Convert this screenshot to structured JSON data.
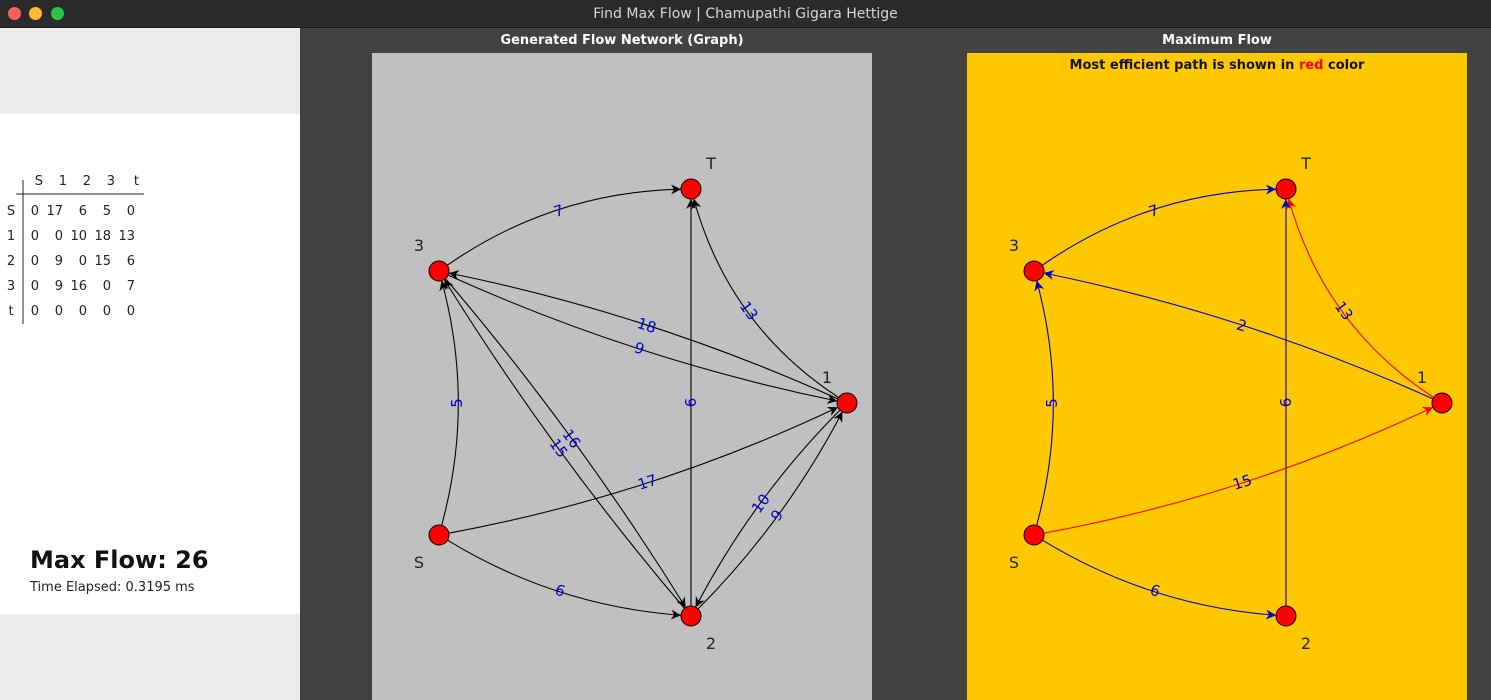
{
  "window": {
    "title": "Find Max Flow | Chamupathi Gigara Hettige",
    "buttons": {
      "close": "#ff5f57",
      "minimize": "#febc2e",
      "zoom": "#28c840"
    }
  },
  "matrix": {
    "col_headers": [
      "S",
      "1",
      "2",
      "3",
      "t"
    ],
    "rows": [
      {
        "label": "S",
        "values": [
          "0",
          "17",
          "6",
          "5",
          "0"
        ]
      },
      {
        "label": "1",
        "values": [
          "0",
          "0",
          "10",
          "18",
          "13"
        ]
      },
      {
        "label": "2",
        "values": [
          "0",
          "9",
          "0",
          "15",
          "6"
        ]
      },
      {
        "label": "3",
        "values": [
          "0",
          "9",
          "16",
          "0",
          "7"
        ]
      },
      {
        "label": "t",
        "values": [
          "0",
          "0",
          "0",
          "0",
          "0"
        ]
      }
    ]
  },
  "result": {
    "max_flow_label": "Max Flow: 26",
    "time_elapsed_label": "Time Elapsed: 0.3195 ms"
  },
  "graph_panel": {
    "title": "Generated Flow Network (Graph)",
    "background": "#c0c0c0",
    "nodes": [
      {
        "id": "S",
        "label": "S"
      },
      {
        "id": "1",
        "label": "1"
      },
      {
        "id": "2",
        "label": "2"
      },
      {
        "id": "3",
        "label": "3"
      },
      {
        "id": "T",
        "label": "T"
      }
    ],
    "edges": [
      {
        "from": "3",
        "to": "T",
        "label": "7"
      },
      {
        "from": "1",
        "to": "T",
        "label": "13"
      },
      {
        "from": "1",
        "to": "3",
        "label": "18"
      },
      {
        "from": "2",
        "to": "T",
        "label": "6"
      },
      {
        "from": "3",
        "to": "1",
        "label": "9"
      },
      {
        "from": "S",
        "to": "3",
        "label": "5"
      },
      {
        "from": "2",
        "to": "3",
        "label": "15"
      },
      {
        "from": "S",
        "to": "1",
        "label": "17"
      },
      {
        "from": "3",
        "to": "2",
        "label": "16"
      },
      {
        "from": "1",
        "to": "2",
        "label": "10"
      },
      {
        "from": "2",
        "to": "1",
        "label": "9"
      },
      {
        "from": "S",
        "to": "2",
        "label": "6"
      }
    ]
  },
  "flow_panel": {
    "title": "Maximum Flow",
    "background": "#ffc800",
    "note_prefix": "Most efficient path is shown in ",
    "note_red": "red",
    "note_suffix": " color",
    "edges": [
      {
        "from": "3",
        "to": "T",
        "label": "7",
        "color": "#0000cc"
      },
      {
        "from": "1",
        "to": "T",
        "label": "13",
        "color": "#ff0000"
      },
      {
        "from": "1",
        "to": "3",
        "label": "2",
        "color": "#0000cc"
      },
      {
        "from": "2",
        "to": "T",
        "label": "6",
        "color": "#0000cc"
      },
      {
        "from": "S",
        "to": "3",
        "label": "5",
        "color": "#0000cc"
      },
      {
        "from": "S",
        "to": "1",
        "label": "15",
        "color": "#ff0000"
      },
      {
        "from": "S",
        "to": "2",
        "label": "6",
        "color": "#0000cc"
      }
    ]
  },
  "colors": {
    "node_fill": "#ff0000",
    "edge_label": "#0000cc",
    "edge_default": "#000000"
  }
}
